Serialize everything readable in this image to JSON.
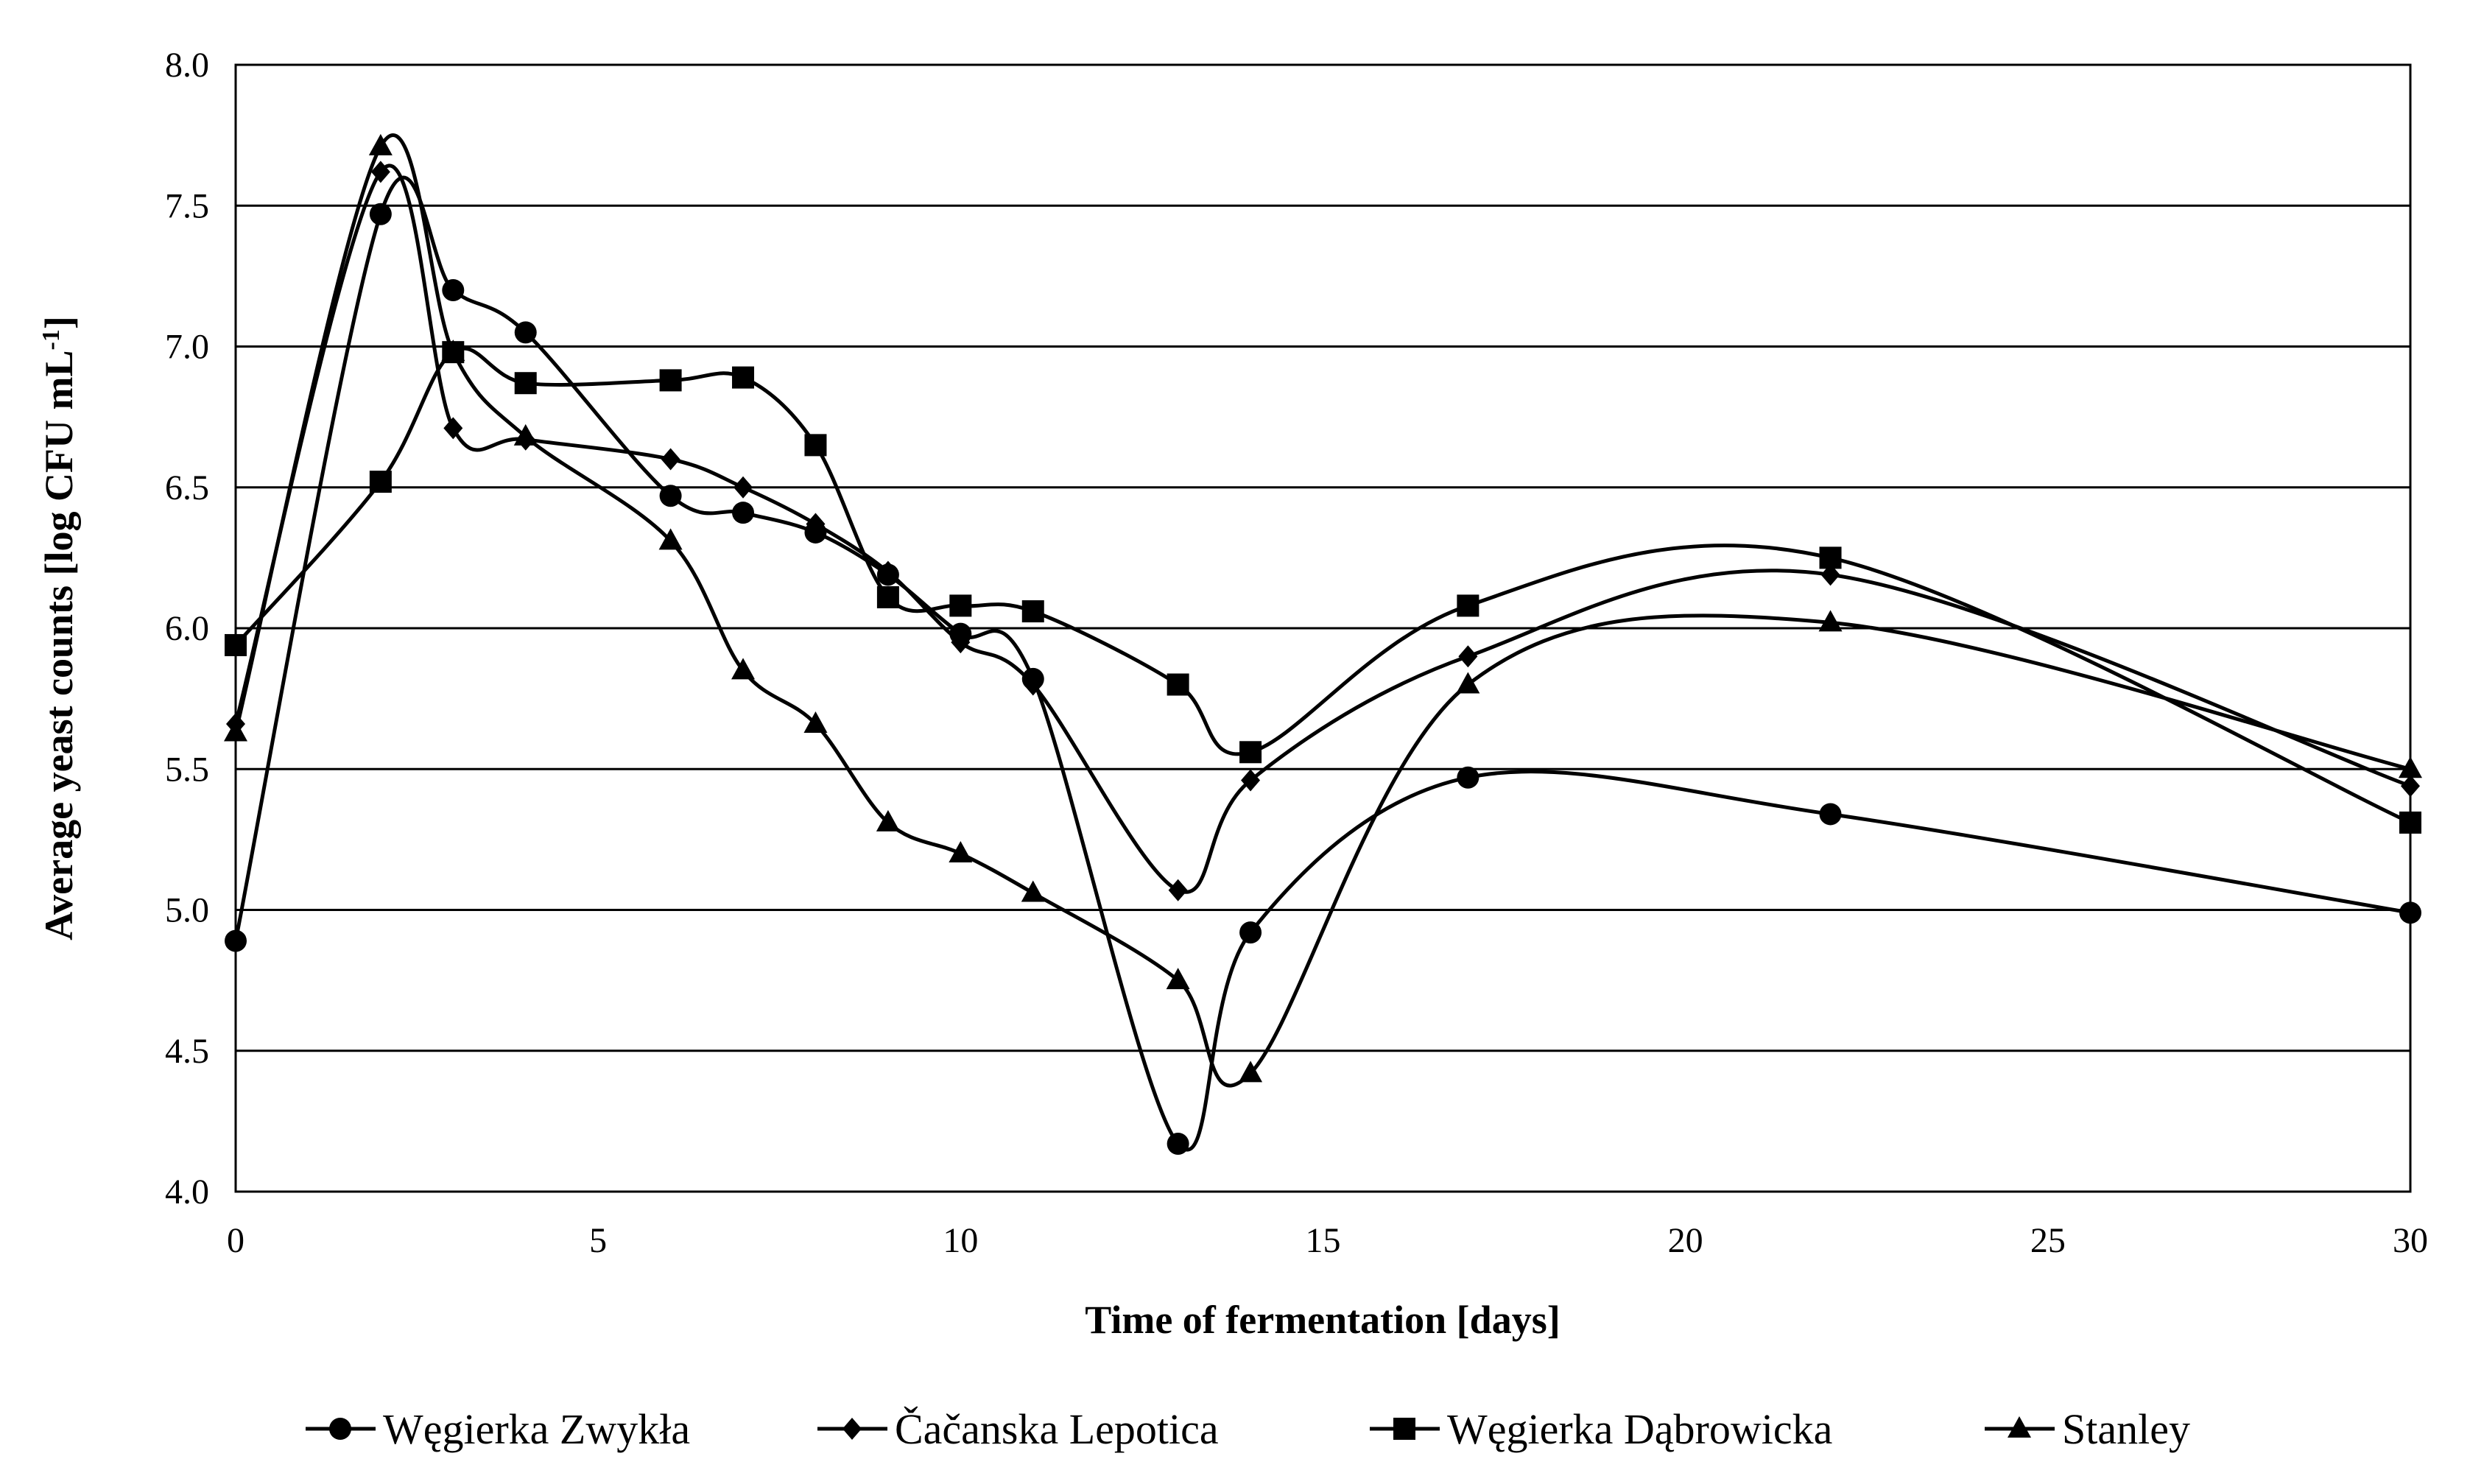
{
  "chart_data": {
    "type": "line",
    "title": "",
    "xlabel": "Time of fermentation [days]",
    "ylabel": "Average yeast counts [log CFU mL",
    "ylabel_superscript": "-1",
    "ylabel_close": "]",
    "xlim": [
      0,
      30
    ],
    "ylim": [
      4.0,
      8.0
    ],
    "xticks": [
      0,
      5,
      10,
      15,
      20,
      25,
      30
    ],
    "xtick_labels": [
      "0",
      "5",
      "10",
      "15",
      "20",
      "25",
      "30"
    ],
    "yticks": [
      4.0,
      4.5,
      5.0,
      5.5,
      6.0,
      6.5,
      7.0,
      7.5,
      8.0
    ],
    "ytick_labels": [
      "4.0",
      "4.5",
      "5.0",
      "5.5",
      "6.0",
      "6.5",
      "7.0",
      "7.5",
      "8.0"
    ],
    "grid": "horizontal",
    "legend_position": "bottom",
    "series": [
      {
        "name": "Węgierka Zwykła",
        "marker": "circle",
        "x": [
          0,
          2,
          3,
          4,
          6,
          7,
          8,
          9,
          10,
          11,
          13,
          14,
          17,
          22,
          30
        ],
        "y": [
          4.89,
          7.47,
          7.2,
          7.05,
          6.47,
          6.41,
          6.34,
          6.19,
          5.98,
          5.82,
          4.17,
          4.92,
          5.47,
          5.34,
          4.99
        ]
      },
      {
        "name": "Čačanska Lepotica",
        "marker": "diamond",
        "x": [
          0,
          2,
          3,
          4,
          6,
          7,
          8,
          9,
          10,
          11,
          13,
          14,
          17,
          22,
          30
        ],
        "y": [
          5.66,
          7.62,
          6.71,
          6.67,
          6.6,
          6.5,
          6.37,
          6.2,
          5.95,
          5.8,
          5.07,
          5.46,
          5.9,
          6.19,
          5.44
        ]
      },
      {
        "name": "Węgierka Dąbrowicka",
        "marker": "square",
        "x": [
          0,
          2,
          3,
          4,
          6,
          7,
          8,
          9,
          10,
          11,
          13,
          14,
          17,
          22,
          30
        ],
        "y": [
          5.94,
          6.52,
          6.98,
          6.87,
          6.88,
          6.89,
          6.65,
          6.11,
          6.08,
          6.06,
          5.8,
          5.56,
          6.08,
          6.25,
          5.31
        ]
      },
      {
        "name": "Stanley",
        "marker": "triangle",
        "x": [
          0,
          2,
          3,
          4,
          6,
          7,
          8,
          9,
          10,
          11,
          13,
          14,
          17,
          22,
          30
        ],
        "y": [
          5.63,
          7.71,
          6.98,
          6.68,
          6.31,
          5.85,
          5.66,
          5.31,
          5.2,
          5.06,
          4.75,
          4.42,
          5.8,
          6.02,
          5.5
        ]
      }
    ]
  }
}
